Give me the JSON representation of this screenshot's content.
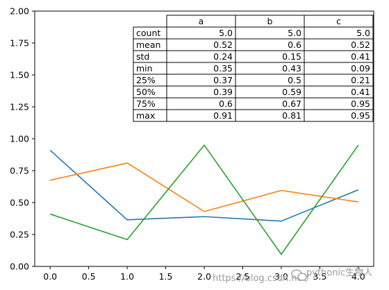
{
  "chart_data": {
    "type": "line",
    "x": [
      0.0,
      1.0,
      2.0,
      3.0,
      4.0
    ],
    "xlim": [
      -0.2,
      4.2
    ],
    "ylim": [
      0.0,
      2.0
    ],
    "xticks": [
      "0.0",
      "0.5",
      "1.0",
      "1.5",
      "2.0",
      "2.5",
      "3.0",
      "3.5",
      "4.0"
    ],
    "yticks": [
      "0.00",
      "0.25",
      "0.50",
      "0.75",
      "1.00",
      "1.25",
      "1.50",
      "1.75",
      "2.00"
    ],
    "grid": false,
    "legend": "none",
    "series": [
      {
        "color": "#1f77b4",
        "values": [
          0.91,
          0.365,
          0.39,
          0.355,
          0.6
        ]
      },
      {
        "color": "#ff7f0e",
        "values": [
          0.675,
          0.81,
          0.43,
          0.595,
          0.505
        ]
      },
      {
        "color": "#2ca02c",
        "values": [
          0.41,
          0.21,
          0.95,
          0.095,
          0.95
        ]
      }
    ],
    "table": {
      "columns": [
        "a",
        "b",
        "c"
      ],
      "rows": [
        {
          "label": "count",
          "values": [
            "5.0",
            "5.0",
            "5.0"
          ]
        },
        {
          "label": "mean",
          "values": [
            "0.52",
            "0.6",
            "0.52"
          ]
        },
        {
          "label": "std",
          "values": [
            "0.24",
            "0.15",
            "0.41"
          ]
        },
        {
          "label": "min",
          "values": [
            "0.35",
            "0.43",
            "0.09"
          ]
        },
        {
          "label": "25%",
          "values": [
            "0.37",
            "0.5",
            "0.21"
          ]
        },
        {
          "label": "50%",
          "values": [
            "0.39",
            "0.59",
            "0.41"
          ]
        },
        {
          "label": "75%",
          "values": [
            "0.6",
            "0.67",
            "0.95"
          ]
        },
        {
          "label": "max",
          "values": [
            "0.91",
            "0.81",
            "0.95"
          ]
        }
      ]
    }
  },
  "watermark": {
    "url": "https://blog.csdn.net/",
    "brand": "pythonic生物人"
  }
}
